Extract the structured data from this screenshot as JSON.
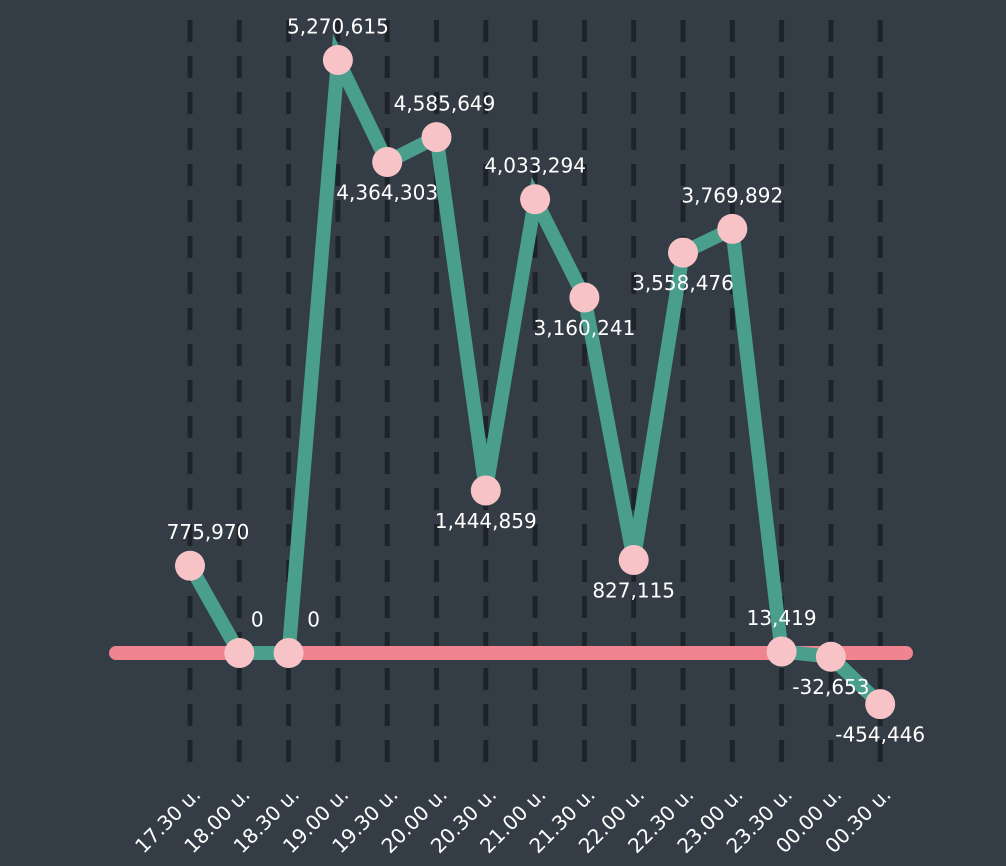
{
  "chart_data": {
    "type": "line",
    "categories": [
      "17.30 u.",
      "18.00 u.",
      "18.30 u.",
      "19.00 u.",
      "19.30 u.",
      "20.00 u.",
      "20.30 u.",
      "21.00 u.",
      "21.30 u.",
      "22.00 u.",
      "22.30 u.",
      "23.00 u.",
      "23.30 u.",
      "00.00 u.",
      "00.30 u."
    ],
    "series": [
      {
        "color": "#4a9e8c",
        "marker_color": "#f7c3c6",
        "values": [
          775970,
          0,
          0,
          5270615,
          4364303,
          4585649,
          1444859,
          4033294,
          3160241,
          827115,
          3558476,
          3769892,
          13419,
          -32653,
          -454446
        ],
        "value_labels": [
          "775,970",
          "0",
          "0",
          "5,270,615",
          "4,364,303",
          "4,585,649",
          "1,444,859",
          "4,033,294",
          "3,160,241",
          "827,115",
          "3,558,476",
          "3,769,892",
          "13,419",
          "-32,653",
          "-454,446"
        ]
      }
    ],
    "ylim": [
      -1084000,
      5804000
    ],
    "baseline_color": "#f0848f",
    "grid": true
  }
}
